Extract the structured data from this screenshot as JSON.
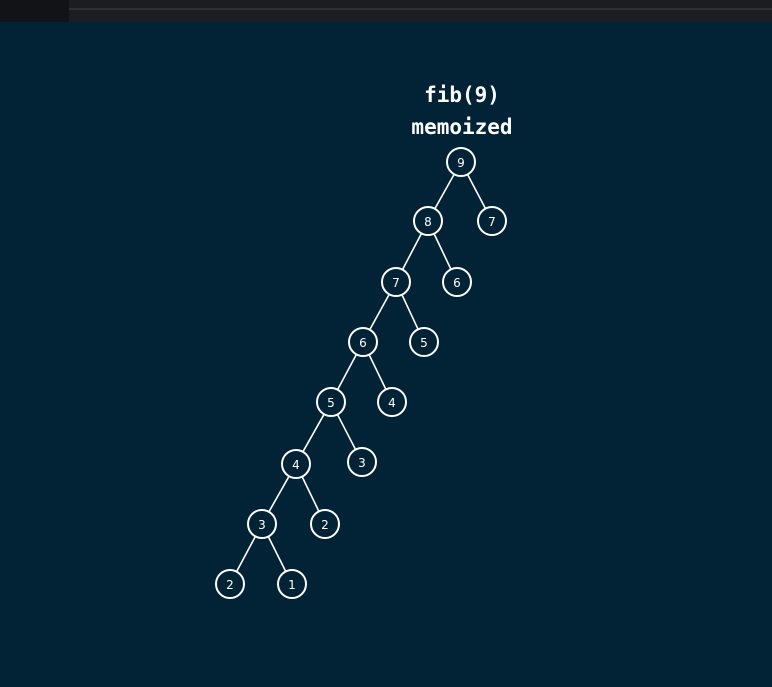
{
  "title": {
    "line1": "fib(9)",
    "line2": "memoized"
  },
  "tree": {
    "nodes": [
      {
        "id": "n9",
        "label": "9"
      },
      {
        "id": "n8",
        "label": "8"
      },
      {
        "id": "n7r",
        "label": "7"
      },
      {
        "id": "n7",
        "label": "7"
      },
      {
        "id": "n6r",
        "label": "6"
      },
      {
        "id": "n6",
        "label": "6"
      },
      {
        "id": "n5r",
        "label": "5"
      },
      {
        "id": "n5",
        "label": "5"
      },
      {
        "id": "n4r",
        "label": "4"
      },
      {
        "id": "n4",
        "label": "4"
      },
      {
        "id": "n3r",
        "label": "3"
      },
      {
        "id": "n3",
        "label": "3"
      },
      {
        "id": "n2r",
        "label": "2"
      },
      {
        "id": "n2",
        "label": "2"
      },
      {
        "id": "n1",
        "label": "1"
      }
    ],
    "edges": [
      [
        "n9",
        "n8"
      ],
      [
        "n9",
        "n7r"
      ],
      [
        "n8",
        "n7"
      ],
      [
        "n8",
        "n6r"
      ],
      [
        "n7",
        "n6"
      ],
      [
        "n7",
        "n5r"
      ],
      [
        "n6",
        "n5"
      ],
      [
        "n6",
        "n4r"
      ],
      [
        "n5",
        "n4"
      ],
      [
        "n5",
        "n3r"
      ],
      [
        "n4",
        "n3"
      ],
      [
        "n4",
        "n2r"
      ],
      [
        "n3",
        "n2"
      ],
      [
        "n3",
        "n1"
      ]
    ]
  }
}
